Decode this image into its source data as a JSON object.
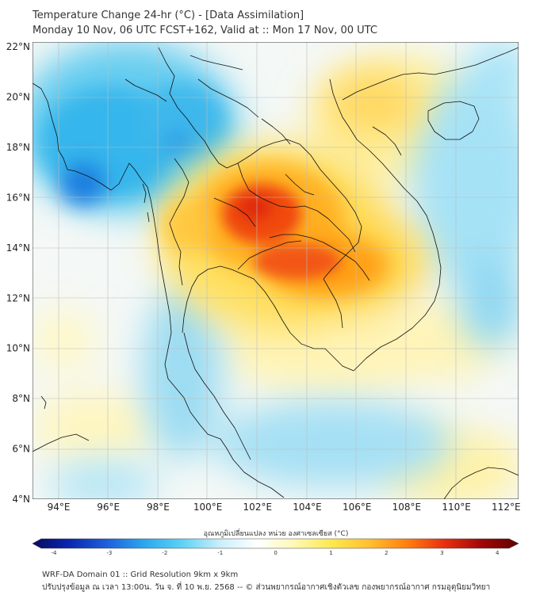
{
  "title": {
    "line1": "Temperature Change 24-hr (°C) - [Data Assimilation]",
    "line2": "Monday 10 Nov, 06 UTC FCST+162, Valid at :: Mon 17 Nov, 00 UTC"
  },
  "map": {
    "lat_labels": [
      "22°N",
      "20°N",
      "18°N",
      "16°N",
      "14°N",
      "12°N",
      "10°N",
      "8°N",
      "6°N",
      "4°N"
    ],
    "lon_labels": [
      "94°E",
      "96°E",
      "98°E",
      "100°E",
      "102°E",
      "104°E",
      "106°E",
      "108°E",
      "110°E",
      "112°E"
    ],
    "colors": {
      "land_outline": "#111111",
      "grid": "#b8b8b8",
      "cold_strong": "#1060d0",
      "cold": "#35b8ec",
      "cool": "#a8e2f5",
      "neutral": "#f3f7f7",
      "warm_light": "#fff4b0",
      "warm": "#ffd84a",
      "hot": "#ff9a10",
      "very_hot": "#ee3010"
    }
  },
  "colorbar": {
    "label": "อุณหภูมิเปลี่ยนแปลง หน่วย องศาเซลเซียส (°C)",
    "ticks": [
      "-4",
      "-3",
      "-2",
      "-1",
      "0",
      "1",
      "2",
      "3",
      "4"
    ],
    "stops": [
      "#0a0a60",
      "#0a28b0",
      "#1e60dc",
      "#2aa8ee",
      "#5ed2f4",
      "#c8eefa",
      "#ffffff",
      "#fff8b4",
      "#ffe850",
      "#ffc030",
      "#ff8010",
      "#e83010",
      "#a00808",
      "#600000"
    ]
  },
  "footer": {
    "line1": "WRF-DA Domain 01 :: Grid Resolution 9km x 9km",
    "line2": "ปรับปรุงข้อมูล ณ เวลา 13:00น. วัน จ. ที่ 10 พ.ย. 2568 -- © ส่วนพยากรณ์อากาศเชิงตัวเลข กองพยากรณ์อากาศ กรมอุตุนิยมวิทยา"
  }
}
